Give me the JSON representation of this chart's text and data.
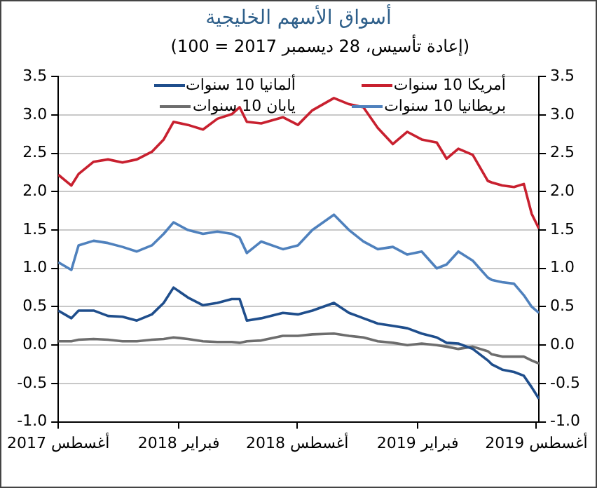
{
  "chart_data": {
    "type": "line",
    "title": "أسواق الأسهم الخليجية",
    "subtitle": "(إعادة تأسيس، 28 ديسمبر 2017 = 100)",
    "x": [
      "2017-08-01",
      "2017-08-21",
      "2017-09-01",
      "2017-09-24",
      "2017-10-16",
      "2017-11-07",
      "2017-11-29",
      "2017-12-22",
      "2018-01-09",
      "2018-01-24",
      "2018-02-15",
      "2018-03-10",
      "2018-04-01",
      "2018-04-23",
      "2018-05-05",
      "2018-05-16",
      "2018-06-07",
      "2018-07-10",
      "2018-08-02",
      "2018-08-24",
      "2018-09-26",
      "2018-10-19",
      "2018-11-10",
      "2018-12-02",
      "2018-12-25",
      "2019-01-16",
      "2019-02-07",
      "2019-03-02",
      "2019-03-17",
      "2019-04-04",
      "2019-04-26",
      "2019-05-19",
      "2019-05-25",
      "2019-06-10",
      "2019-06-28",
      "2019-07-13",
      "2019-07-25",
      "2019-08-05"
    ],
    "series": [
      {
        "name": "أمريكا 10 سنوات",
        "color": "#c8202f",
        "values": [
          2.22,
          2.08,
          2.23,
          2.39,
          2.42,
          2.38,
          2.42,
          2.52,
          2.68,
          2.91,
          2.87,
          2.81,
          2.95,
          3.01,
          3.1,
          2.91,
          2.89,
          2.97,
          2.87,
          3.06,
          3.22,
          3.14,
          3.1,
          2.83,
          2.62,
          2.78,
          2.68,
          2.64,
          2.43,
          2.56,
          2.48,
          2.14,
          2.12,
          2.08,
          2.06,
          2.1,
          1.71,
          1.52
        ]
      },
      {
        "name": "ألمانيا 10 سنوات",
        "color": "#1f4e8c",
        "values": [
          0.45,
          0.35,
          0.45,
          0.45,
          0.38,
          0.37,
          0.32,
          0.4,
          0.55,
          0.75,
          0.62,
          0.52,
          0.55,
          0.6,
          0.6,
          0.32,
          0.35,
          0.42,
          0.4,
          0.45,
          0.55,
          0.42,
          0.35,
          0.28,
          0.25,
          0.22,
          0.15,
          0.1,
          0.03,
          0.02,
          -0.05,
          -0.2,
          -0.25,
          -0.32,
          -0.35,
          -0.4,
          -0.55,
          -0.7
        ]
      },
      {
        "name": "بريطانيا 10 سنوات",
        "color": "#4f81bd",
        "values": [
          1.08,
          0.98,
          1.3,
          1.36,
          1.33,
          1.28,
          1.22,
          1.3,
          1.45,
          1.6,
          1.5,
          1.45,
          1.48,
          1.45,
          1.4,
          1.2,
          1.35,
          1.25,
          1.3,
          1.5,
          1.7,
          1.5,
          1.35,
          1.25,
          1.28,
          1.18,
          1.22,
          1.0,
          1.05,
          1.22,
          1.1,
          0.88,
          0.85,
          0.82,
          0.8,
          0.65,
          0.5,
          0.42
        ]
      },
      {
        "name": "يابان 10 سنوات",
        "color": "#6d6d6d",
        "values": [
          0.05,
          0.05,
          0.07,
          0.08,
          0.07,
          0.05,
          0.05,
          0.07,
          0.08,
          0.1,
          0.08,
          0.05,
          0.04,
          0.04,
          0.03,
          0.05,
          0.06,
          0.12,
          0.12,
          0.14,
          0.15,
          0.12,
          0.1,
          0.05,
          0.03,
          0.0,
          0.02,
          0.0,
          -0.02,
          -0.05,
          -0.02,
          -0.08,
          -0.12,
          -0.15,
          -0.15,
          -0.15,
          -0.2,
          -0.24
        ]
      }
    ],
    "xlim": [
      "2017-08-01",
      "2019-08-05"
    ],
    "xticks": [
      {
        "value": "2017-08-01",
        "label": "أغسطس 2017"
      },
      {
        "value": "2018-02-01",
        "label": "فبراير 2018"
      },
      {
        "value": "2018-08-01",
        "label": "أغسطس 2018"
      },
      {
        "value": "2019-02-01",
        "label": "فبراير 2019"
      },
      {
        "value": "2019-08-01",
        "label": "أغسطس 2019"
      }
    ],
    "ylim": [
      -1,
      3.5
    ],
    "yticks": [
      {
        "value": -1,
        "label": "-1.0"
      },
      -0.5,
      {
        "value": 0,
        "label": "0.0"
      },
      0.5,
      {
        "value": 1,
        "label": "1.0"
      },
      1.5,
      {
        "value": 2,
        "label": "2.0"
      },
      2.5,
      {
        "value": 3,
        "label": "3.0"
      },
      3.5
    ],
    "y2lim": [
      -1,
      3.5
    ],
    "y2ticks": [
      {
        "value": -1,
        "label": "-1.0"
      },
      -0.5,
      {
        "value": 0,
        "label": "0.0"
      },
      0.5,
      {
        "value": 1,
        "label": "1.0"
      },
      1.5,
      {
        "value": 2,
        "label": "2.0"
      },
      2.5,
      {
        "value": 3,
        "label": "3.0"
      },
      3.5
    ],
    "grid": "y",
    "legend": "top",
    "marker": "none",
    "line_style": "solid"
  }
}
